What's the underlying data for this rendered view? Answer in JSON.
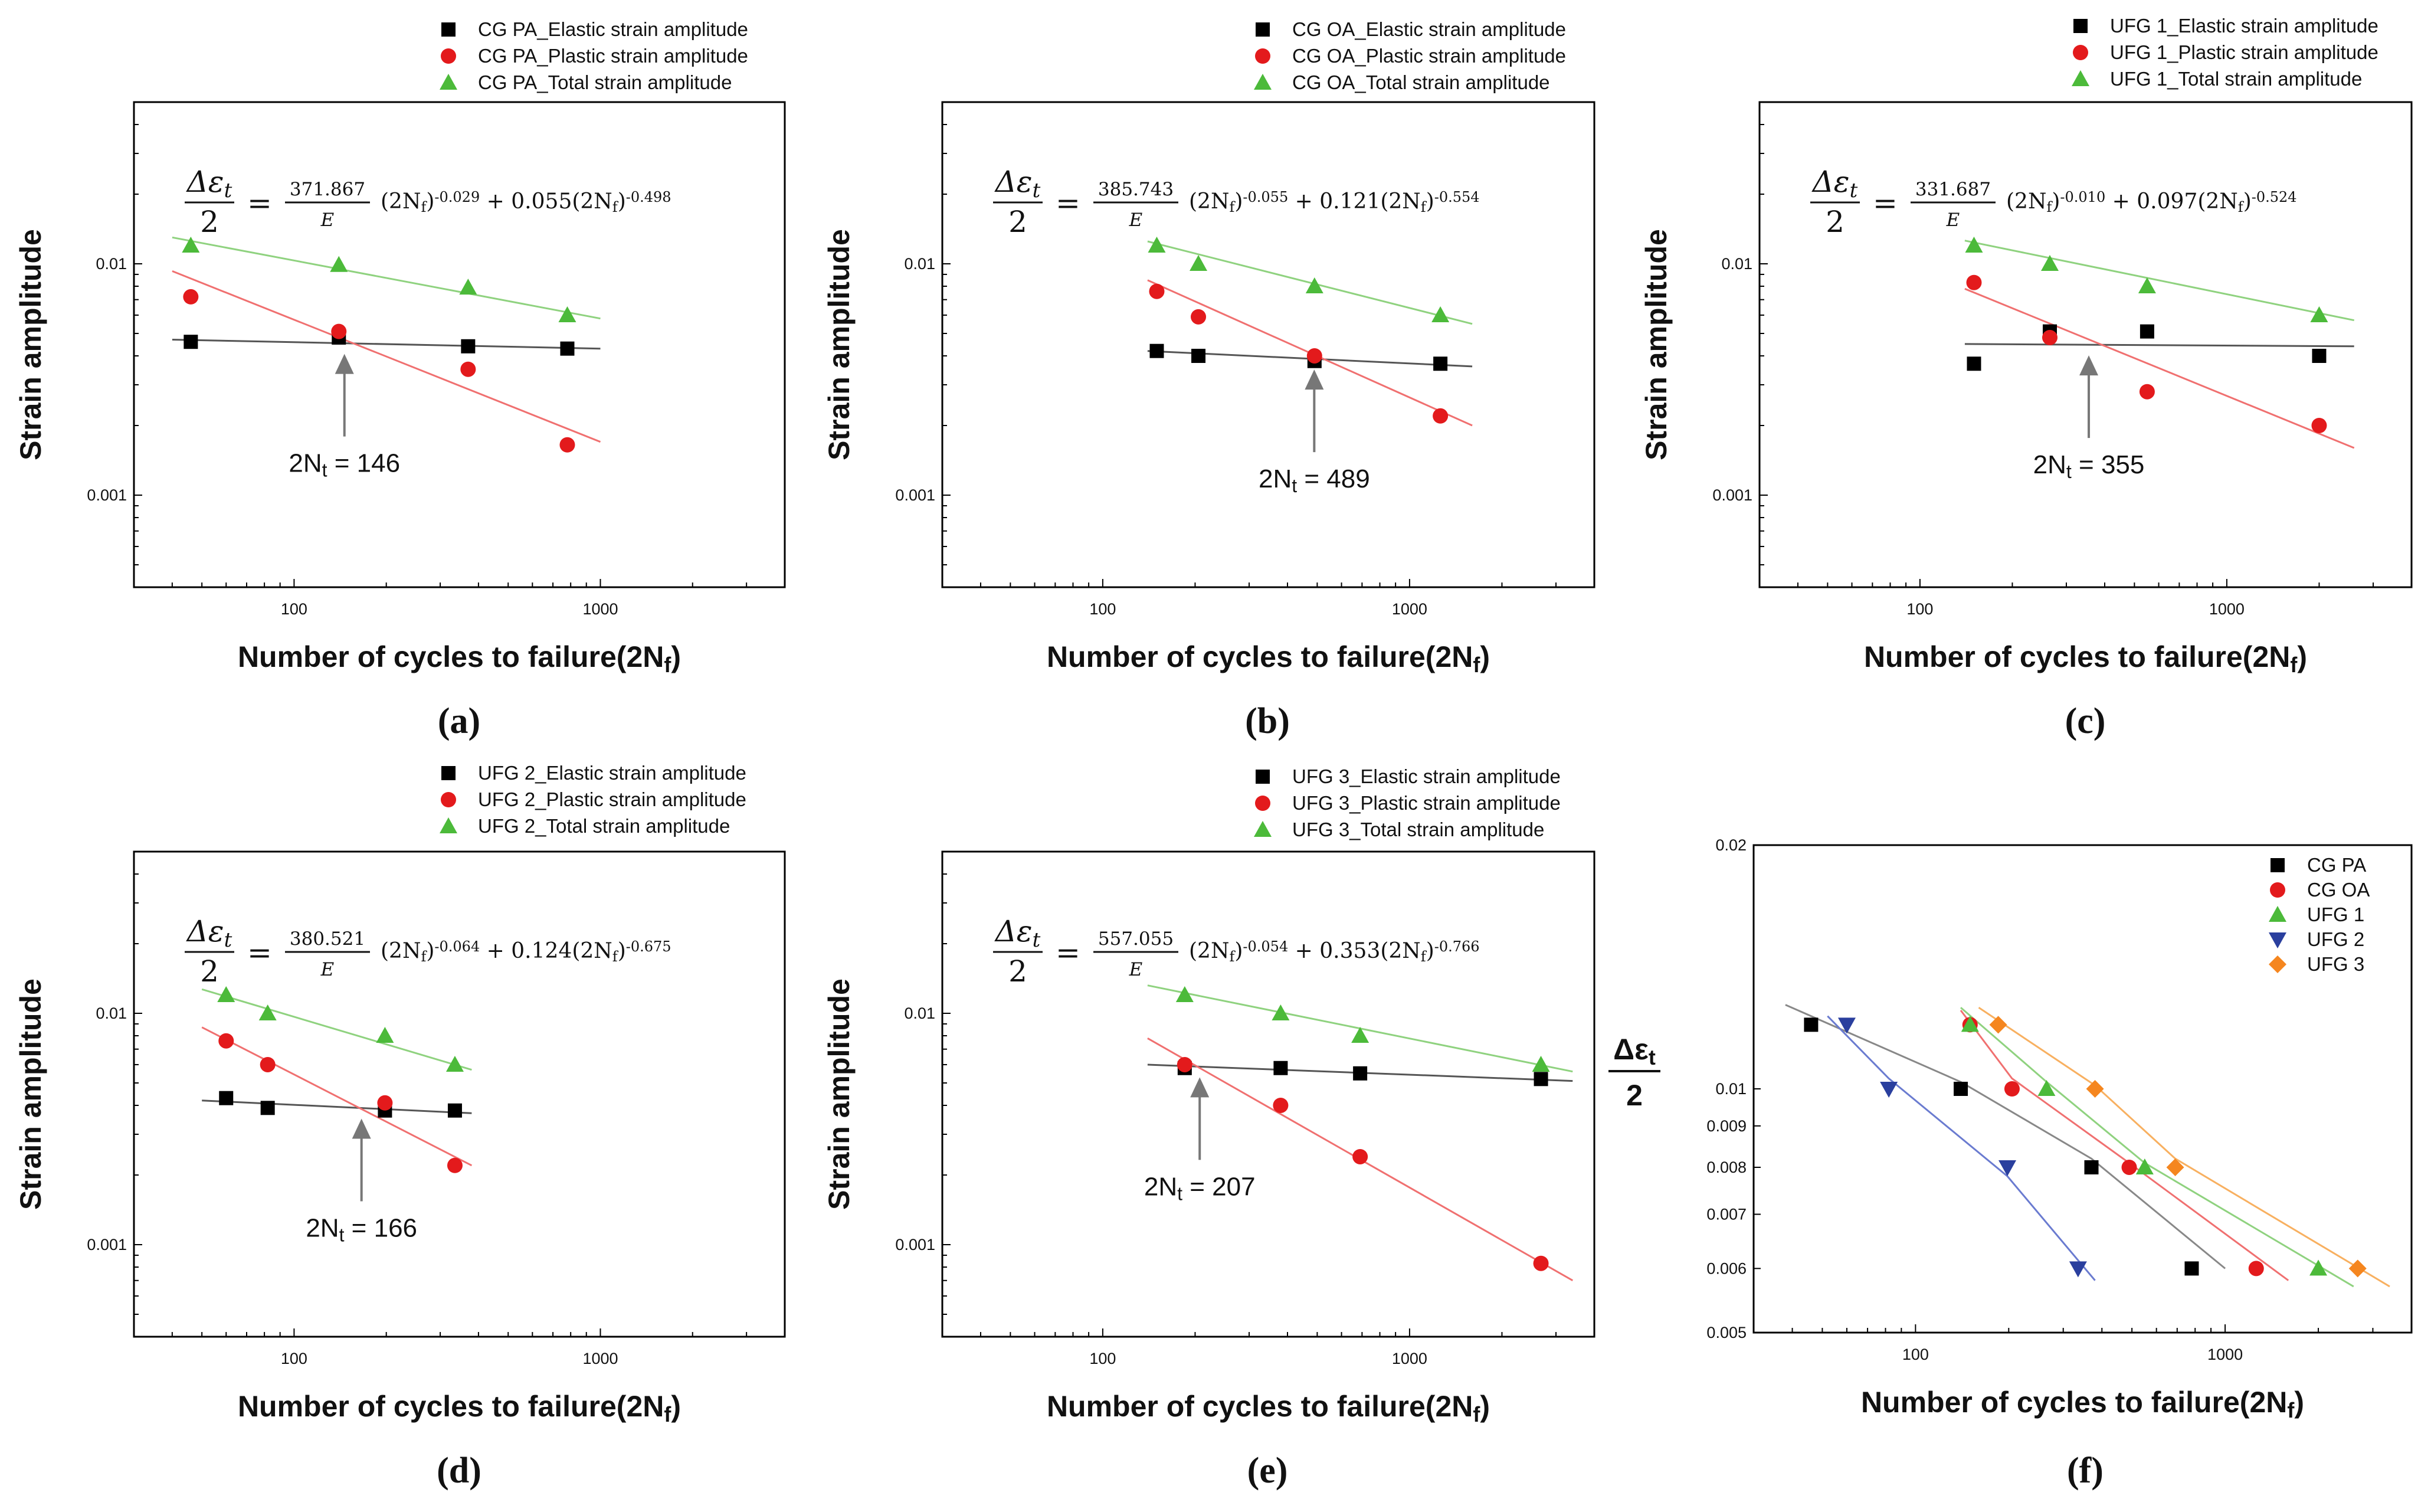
{
  "chart_data": [
    {
      "id": "a",
      "type": "scatter",
      "panel_label": "(a)",
      "xlabel": "Number of cycles to failure(2N",
      "xlabel_sub": "f",
      "xlabel_end": ")",
      "ylabel": "Strain amplitude",
      "xscale": "log",
      "yscale": "log",
      "xlim": [
        30,
        4000
      ],
      "ylim": [
        0.0004,
        0.05
      ],
      "xticks": [
        {
          "v": 100,
          "label": "100"
        },
        {
          "v": 1000,
          "label": "1000"
        }
      ],
      "yticks": [
        {
          "v": 0.001,
          "label": "0.001"
        },
        {
          "v": 0.01,
          "label": "0.01"
        }
      ],
      "legend_position": "top",
      "equation": {
        "numerator": "Δε",
        "sub": "t",
        "denominator": "2",
        "coef": "371.867",
        "coef_den": "E",
        "term1_exp": "-0.029",
        "coef2": "0.055",
        "term2_exp": "-0.498"
      },
      "transition": {
        "label": "2N",
        "sub": "t",
        "value_text": "= 146",
        "x": 146
      },
      "series": [
        {
          "name": "CG PA_Elastic strain amplitude",
          "marker": "square",
          "color": "#000000",
          "x": [
            46,
            140,
            370,
            780
          ],
          "y": [
            0.0046,
            0.0048,
            0.0044,
            0.0043
          ]
        },
        {
          "name": "CG PA_Plastic strain amplitude",
          "marker": "circle",
          "color": "#e31a1c",
          "x": [
            46,
            140,
            370,
            780
          ],
          "y": [
            0.0072,
            0.0051,
            0.0035,
            0.00165
          ]
        },
        {
          "name": "CG PA_Total strain amplitude",
          "marker": "triangle",
          "color": "#4cba3a",
          "x": [
            46,
            140,
            370,
            780
          ],
          "y": [
            0.012,
            0.0099,
            0.0079,
            0.006
          ]
        }
      ],
      "fits": [
        {
          "color": "#555555",
          "x": [
            40,
            1000
          ],
          "y": [
            0.0047,
            0.0043
          ]
        },
        {
          "color": "#f07070",
          "x": [
            40,
            1000
          ],
          "y": [
            0.0093,
            0.0017
          ]
        },
        {
          "color": "#8fd27f",
          "x": [
            40,
            1000
          ],
          "y": [
            0.013,
            0.0058
          ]
        }
      ]
    },
    {
      "id": "b",
      "type": "scatter",
      "panel_label": "(b)",
      "xlabel": "Number of cycles to failure(2N",
      "xlabel_sub": "f",
      "xlabel_end": ")",
      "ylabel": "Strain amplitude",
      "xscale": "log",
      "yscale": "log",
      "xlim": [
        30,
        4000
      ],
      "ylim": [
        0.0004,
        0.05
      ],
      "xticks": [
        {
          "v": 100,
          "label": "100"
        },
        {
          "v": 1000,
          "label": "1000"
        }
      ],
      "yticks": [
        {
          "v": 0.001,
          "label": "0.001"
        },
        {
          "v": 0.01,
          "label": "0.01"
        }
      ],
      "legend_position": "top",
      "equation": {
        "numerator": "Δε",
        "sub": "t",
        "denominator": "2",
        "coef": "385.743",
        "coef_den": "E",
        "term1_exp": "-0.055",
        "coef2": "0.121",
        "term2_exp": "-0.554"
      },
      "transition": {
        "label": "2N",
        "sub": "t",
        "value_text": "= 489",
        "x": 489
      },
      "series": [
        {
          "name": "CG OA_Elastic strain amplitude",
          "marker": "square",
          "color": "#000000",
          "x": [
            150,
            205,
            490,
            1260
          ],
          "y": [
            0.0042,
            0.004,
            0.0038,
            0.0037
          ]
        },
        {
          "name": "CG OA_Plastic strain amplitude",
          "marker": "circle",
          "color": "#e31a1c",
          "x": [
            150,
            205,
            490,
            1260
          ],
          "y": [
            0.0076,
            0.0059,
            0.004,
            0.0022
          ]
        },
        {
          "name": "CG OA_Total strain amplitude",
          "marker": "triangle",
          "color": "#4cba3a",
          "x": [
            150,
            205,
            490,
            1260
          ],
          "y": [
            0.012,
            0.01,
            0.008,
            0.006
          ]
        }
      ],
      "fits": [
        {
          "color": "#555555",
          "x": [
            140,
            1600
          ],
          "y": [
            0.0042,
            0.0036
          ]
        },
        {
          "color": "#f07070",
          "x": [
            140,
            1600
          ],
          "y": [
            0.0085,
            0.002
          ]
        },
        {
          "color": "#8fd27f",
          "x": [
            140,
            1600
          ],
          "y": [
            0.0125,
            0.0055
          ]
        }
      ]
    },
    {
      "id": "c",
      "type": "scatter",
      "panel_label": "(c)",
      "xlabel": "Number of cycles to failure(2N",
      "xlabel_sub": "f",
      "xlabel_end": ")",
      "ylabel": "Strain amplitude",
      "xscale": "log",
      "yscale": "log",
      "xlim": [
        30,
        4000
      ],
      "ylim": [
        0.0004,
        0.05
      ],
      "xticks": [
        {
          "v": 100,
          "label": "100"
        },
        {
          "v": 1000,
          "label": "1000"
        }
      ],
      "yticks": [
        {
          "v": 0.001,
          "label": "0.001"
        },
        {
          "v": 0.01,
          "label": "0.01"
        }
      ],
      "legend_position": "top",
      "equation": {
        "numerator": "Δε",
        "sub": "t",
        "denominator": "2",
        "coef": "331.687",
        "coef_den": "E",
        "term1_exp": "-0.010",
        "coef2": "0.097",
        "term2_exp": "-0.524"
      },
      "transition": {
        "label": "2N",
        "sub": "t",
        "value_text": "= 355",
        "x": 355
      },
      "series": [
        {
          "name": "UFG 1_Elastic strain amplitude",
          "marker": "square",
          "color": "#000000",
          "x": [
            150,
            265,
            550,
            2000
          ],
          "y": [
            0.0037,
            0.0051,
            0.0051,
            0.004
          ]
        },
        {
          "name": "UFG 1_Plastic strain amplitude",
          "marker": "circle",
          "color": "#e31a1c",
          "x": [
            150,
            265,
            550,
            2000
          ],
          "y": [
            0.0083,
            0.0048,
            0.0028,
            0.002
          ]
        },
        {
          "name": "UFG 1_Total strain amplitude",
          "marker": "triangle",
          "color": "#4cba3a",
          "x": [
            150,
            265,
            550,
            2000
          ],
          "y": [
            0.012,
            0.01,
            0.008,
            0.006
          ]
        }
      ],
      "fits": [
        {
          "color": "#555555",
          "x": [
            140,
            2600
          ],
          "y": [
            0.0045,
            0.0044
          ]
        },
        {
          "color": "#f07070",
          "x": [
            140,
            2600
          ],
          "y": [
            0.0078,
            0.0016
          ]
        },
        {
          "color": "#8fd27f",
          "x": [
            140,
            2600
          ],
          "y": [
            0.0126,
            0.0057
          ]
        }
      ]
    },
    {
      "id": "d",
      "type": "scatter",
      "panel_label": "(d)",
      "xlabel": "Number of cycles to failure(2N",
      "xlabel_sub": "f",
      "xlabel_end": ")",
      "ylabel": "Strain amplitude",
      "xscale": "log",
      "yscale": "log",
      "xlim": [
        30,
        4000
      ],
      "ylim": [
        0.0004,
        0.05
      ],
      "xticks": [
        {
          "v": 100,
          "label": "100"
        },
        {
          "v": 1000,
          "label": "1000"
        }
      ],
      "yticks": [
        {
          "v": 0.001,
          "label": "0.001"
        },
        {
          "v": 0.01,
          "label": "0.01"
        }
      ],
      "legend_position": "top",
      "equation": {
        "numerator": "Δε",
        "sub": "t",
        "denominator": "2",
        "coef": "380.521",
        "coef_den": "E",
        "term1_exp": "-0.064",
        "coef2": "0.124",
        "term2_exp": "-0.675"
      },
      "transition": {
        "label": "2N",
        "sub": "t",
        "value_text": "= 166",
        "x": 166
      },
      "series": [
        {
          "name": "UFG 2_Elastic strain amplitude",
          "marker": "square",
          "color": "#000000",
          "x": [
            60,
            82,
            198,
            335
          ],
          "y": [
            0.0043,
            0.0039,
            0.0038,
            0.0038
          ]
        },
        {
          "name": "UFG 2_Plastic strain amplitude",
          "marker": "circle",
          "color": "#e31a1c",
          "x": [
            60,
            82,
            198,
            335
          ],
          "y": [
            0.0076,
            0.006,
            0.0041,
            0.0022
          ]
        },
        {
          "name": "UFG 2_Total strain amplitude",
          "marker": "triangle",
          "color": "#4cba3a",
          "x": [
            60,
            82,
            198,
            335
          ],
          "y": [
            0.012,
            0.01,
            0.008,
            0.006
          ]
        }
      ],
      "fits": [
        {
          "color": "#555555",
          "x": [
            50,
            380
          ],
          "y": [
            0.0042,
            0.0037
          ]
        },
        {
          "color": "#f07070",
          "x": [
            50,
            380
          ],
          "y": [
            0.0087,
            0.0022
          ]
        },
        {
          "color": "#8fd27f",
          "x": [
            50,
            380
          ],
          "y": [
            0.0127,
            0.0057
          ]
        }
      ]
    },
    {
      "id": "e",
      "type": "scatter",
      "panel_label": "(e)",
      "xlabel": "Number of cycles to failure(2N",
      "xlabel_sub": "f",
      "xlabel_end": ")",
      "ylabel": "Strain amplitude",
      "xscale": "log",
      "yscale": "log",
      "xlim": [
        30,
        4000
      ],
      "ylim": [
        0.0004,
        0.05
      ],
      "xticks": [
        {
          "v": 100,
          "label": "100"
        },
        {
          "v": 1000,
          "label": "1000"
        }
      ],
      "yticks": [
        {
          "v": 0.001,
          "label": "0.001"
        },
        {
          "v": 0.01,
          "label": "0.01"
        }
      ],
      "legend_position": "top",
      "equation": {
        "numerator": "Δε",
        "sub": "t",
        "denominator": "2",
        "coef": "557.055",
        "coef_den": "E",
        "term1_exp": "-0.054",
        "coef2": "0.353",
        "term2_exp": "-0.766"
      },
      "transition": {
        "label": "2N",
        "sub": "t",
        "value_text": "= 207",
        "x": 207
      },
      "series": [
        {
          "name": "UFG 3_Elastic strain amplitude",
          "marker": "square",
          "color": "#000000",
          "x": [
            185,
            380,
            690,
            2680
          ],
          "y": [
            0.0058,
            0.0058,
            0.0055,
            0.0052
          ]
        },
        {
          "name": "UFG 3_Plastic strain amplitude",
          "marker": "circle",
          "color": "#e31a1c",
          "x": [
            185,
            380,
            690,
            2680
          ],
          "y": [
            0.006,
            0.004,
            0.0024,
            0.00083
          ]
        },
        {
          "name": "UFG 3_Total strain amplitude",
          "marker": "triangle",
          "color": "#4cba3a",
          "x": [
            185,
            380,
            690,
            2680
          ],
          "y": [
            0.012,
            0.01,
            0.008,
            0.006
          ]
        }
      ],
      "fits": [
        {
          "color": "#555555",
          "x": [
            140,
            3400
          ],
          "y": [
            0.006,
            0.0051
          ]
        },
        {
          "color": "#f07070",
          "x": [
            140,
            3400
          ],
          "y": [
            0.0078,
            0.0007
          ]
        },
        {
          "color": "#8fd27f",
          "x": [
            140,
            3400
          ],
          "y": [
            0.0132,
            0.0056
          ]
        }
      ]
    },
    {
      "id": "f",
      "type": "scatter",
      "panel_label": "(f)",
      "xlabel": "Number of cycles to failure(2N",
      "xlabel_sub": "f",
      "xlabel_end": ")",
      "ylabel_num": "Δε",
      "ylabel_sub": "t",
      "ylabel_den": "2",
      "xscale": "log",
      "yscale": "log",
      "xlim": [
        30,
        4000
      ],
      "ylim": [
        0.005,
        0.02
      ],
      "xticks": [
        {
          "v": 100,
          "label": "100"
        },
        {
          "v": 1000,
          "label": "1000"
        }
      ],
      "yticks": [
        {
          "v": 0.005,
          "label": "0.005"
        },
        {
          "v": 0.006,
          "label": "0.006"
        },
        {
          "v": 0.007,
          "label": "0.007"
        },
        {
          "v": 0.008,
          "label": "0.008"
        },
        {
          "v": 0.009,
          "label": "0.009"
        },
        {
          "v": 0.01,
          "label": "0.01"
        },
        {
          "v": 0.02,
          "label": "0.02"
        }
      ],
      "legend_position": "top-right",
      "series": [
        {
          "name": "CG PA",
          "marker": "square",
          "color": "#000000",
          "x": [
            46,
            140,
            370,
            780
          ],
          "y": [
            0.012,
            0.01,
            0.008,
            0.006
          ]
        },
        {
          "name": "CG OA",
          "marker": "circle",
          "color": "#e31a1c",
          "x": [
            150,
            205,
            490,
            1260
          ],
          "y": [
            0.012,
            0.01,
            0.008,
            0.006
          ]
        },
        {
          "name": "UFG 1",
          "marker": "triangle",
          "color": "#4cba3a",
          "x": [
            150,
            265,
            550,
            2000
          ],
          "y": [
            0.012,
            0.01,
            0.008,
            0.006
          ]
        },
        {
          "name": "UFG 2",
          "marker": "triangle-down",
          "color": "#2a3f9e",
          "x": [
            60,
            82,
            198,
            335
          ],
          "y": [
            0.012,
            0.01,
            0.008,
            0.006
          ]
        },
        {
          "name": "UFG 3",
          "marker": "diamond",
          "color": "#f5861f",
          "x": [
            185,
            380,
            690,
            2680
          ],
          "y": [
            0.012,
            0.01,
            0.008,
            0.006
          ]
        }
      ],
      "fits": [
        {
          "color": "#888888",
          "x": [
            38,
            140,
            370,
            1000
          ],
          "y": [
            0.0127,
            0.0102,
            0.0082,
            0.006
          ]
        },
        {
          "color": "#f07070",
          "x": [
            140,
            205,
            490,
            1600
          ],
          "y": [
            0.0125,
            0.0103,
            0.0081,
            0.0058
          ]
        },
        {
          "color": "#8fd27f",
          "x": [
            140,
            265,
            550,
            2600
          ],
          "y": [
            0.0126,
            0.0102,
            0.0081,
            0.0057
          ]
        },
        {
          "color": "#6a7bd0",
          "x": [
            52,
            82,
            198,
            380
          ],
          "y": [
            0.0123,
            0.0103,
            0.0078,
            0.0058
          ]
        },
        {
          "color": "#f8b060",
          "x": [
            160,
            380,
            690,
            3400
          ],
          "y": [
            0.0126,
            0.0101,
            0.0082,
            0.0057
          ]
        }
      ]
    }
  ]
}
